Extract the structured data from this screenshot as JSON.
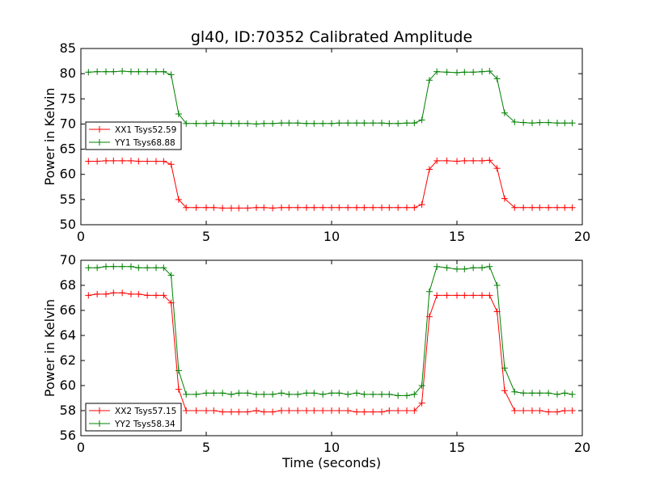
{
  "title": "gl40, ID:70352 Calibrated Amplitude",
  "chart_data": [
    {
      "type": "line",
      "ylabel": "Power in Kelvin",
      "xlabel": "",
      "xlim": [
        0,
        20
      ],
      "ylim": [
        50,
        85
      ],
      "xticks": [
        "0",
        "5",
        "10",
        "15",
        "20"
      ],
      "yticks": [
        "50",
        "55",
        "60",
        "65",
        "70",
        "75",
        "80",
        "85"
      ],
      "grid": false,
      "legend_position": "left",
      "x": [
        0.3,
        0.65,
        1.0,
        1.3,
        1.65,
        2.0,
        2.3,
        2.65,
        3.0,
        3.3,
        3.6,
        3.9,
        4.2,
        4.6,
        5.0,
        5.3,
        5.65,
        6.0,
        6.3,
        6.65,
        7.0,
        7.3,
        7.65,
        8.0,
        8.3,
        8.65,
        9.0,
        9.3,
        9.65,
        10.0,
        10.3,
        10.65,
        11.0,
        11.3,
        11.65,
        12.0,
        12.3,
        12.65,
        13.0,
        13.3,
        13.6,
        13.9,
        14.2,
        14.6,
        15.0,
        15.3,
        15.65,
        16.0,
        16.3,
        16.6,
        16.9,
        17.3,
        17.65,
        18.0,
        18.3,
        18.65,
        19.0,
        19.3,
        19.6
      ],
      "series": [
        {
          "name": "XX1 Tsys52.59",
          "color": "#ff0000",
          "values": [
            62.6,
            62.6,
            62.7,
            62.7,
            62.7,
            62.7,
            62.6,
            62.6,
            62.6,
            62.6,
            62.0,
            55.0,
            53.4,
            53.4,
            53.4,
            53.4,
            53.3,
            53.3,
            53.3,
            53.3,
            53.4,
            53.4,
            53.3,
            53.4,
            53.4,
            53.4,
            53.4,
            53.4,
            53.4,
            53.4,
            53.4,
            53.4,
            53.4,
            53.4,
            53.4,
            53.4,
            53.4,
            53.4,
            53.4,
            53.4,
            54.0,
            61.0,
            62.7,
            62.7,
            62.6,
            62.7,
            62.7,
            62.7,
            62.8,
            61.2,
            55.2,
            53.4,
            53.4,
            53.4,
            53.4,
            53.4,
            53.4,
            53.4,
            53.4
          ]
        },
        {
          "name": "YY1 Tsys68.88",
          "color": "#008000",
          "values": [
            80.3,
            80.4,
            80.4,
            80.4,
            80.5,
            80.4,
            80.4,
            80.4,
            80.4,
            80.4,
            79.8,
            72.0,
            70.1,
            70.1,
            70.1,
            70.2,
            70.1,
            70.1,
            70.1,
            70.1,
            70.0,
            70.1,
            70.1,
            70.2,
            70.2,
            70.2,
            70.1,
            70.1,
            70.1,
            70.1,
            70.2,
            70.2,
            70.2,
            70.2,
            70.2,
            70.2,
            70.1,
            70.1,
            70.2,
            70.2,
            70.8,
            78.7,
            80.4,
            80.3,
            80.2,
            80.3,
            80.3,
            80.4,
            80.5,
            79.0,
            72.2,
            70.4,
            70.3,
            70.2,
            70.3,
            70.3,
            70.2,
            70.2,
            70.2
          ]
        }
      ]
    },
    {
      "type": "line",
      "ylabel": "Power in Kelvin",
      "xlabel": "Time (seconds)",
      "xlim": [
        0,
        20
      ],
      "ylim": [
        56,
        70
      ],
      "xticks": [
        "0",
        "5",
        "10",
        "15",
        "20"
      ],
      "yticks": [
        "56",
        "58",
        "60",
        "62",
        "64",
        "66",
        "68",
        "70"
      ],
      "grid": false,
      "legend_position": "lower-left",
      "x": [
        0.3,
        0.65,
        1.0,
        1.3,
        1.65,
        2.0,
        2.3,
        2.65,
        3.0,
        3.3,
        3.6,
        3.9,
        4.2,
        4.6,
        5.0,
        5.3,
        5.65,
        6.0,
        6.3,
        6.65,
        7.0,
        7.3,
        7.65,
        8.0,
        8.3,
        8.65,
        9.0,
        9.3,
        9.65,
        10.0,
        10.3,
        10.65,
        11.0,
        11.3,
        11.65,
        12.0,
        12.3,
        12.65,
        13.0,
        13.3,
        13.6,
        13.9,
        14.2,
        14.6,
        15.0,
        15.3,
        15.65,
        16.0,
        16.3,
        16.6,
        16.9,
        17.3,
        17.65,
        18.0,
        18.3,
        18.65,
        19.0,
        19.3,
        19.6
      ],
      "series": [
        {
          "name": "XX2 Tsys57.15",
          "color": "#ff0000",
          "values": [
            67.2,
            67.3,
            67.3,
            67.4,
            67.4,
            67.3,
            67.3,
            67.2,
            67.2,
            67.2,
            66.6,
            59.7,
            58.0,
            58.0,
            58.0,
            58.0,
            57.9,
            57.9,
            57.9,
            57.9,
            58.0,
            57.9,
            57.9,
            58.0,
            58.0,
            58.0,
            58.0,
            58.0,
            58.0,
            58.0,
            58.0,
            58.0,
            57.9,
            57.9,
            57.9,
            57.9,
            58.0,
            58.0,
            58.0,
            58.0,
            58.6,
            65.5,
            67.2,
            67.2,
            67.2,
            67.2,
            67.2,
            67.2,
            67.2,
            65.9,
            59.6,
            58.0,
            58.0,
            58.0,
            58.0,
            57.9,
            57.9,
            58.0,
            58.0
          ]
        },
        {
          "name": "YY2 Tsys58.34",
          "color": "#008000",
          "values": [
            69.4,
            69.4,
            69.5,
            69.5,
            69.5,
            69.5,
            69.4,
            69.4,
            69.4,
            69.4,
            68.8,
            61.2,
            59.3,
            59.3,
            59.4,
            59.4,
            59.4,
            59.3,
            59.4,
            59.4,
            59.3,
            59.3,
            59.3,
            59.4,
            59.3,
            59.3,
            59.4,
            59.4,
            59.3,
            59.4,
            59.4,
            59.3,
            59.4,
            59.3,
            59.3,
            59.3,
            59.3,
            59.2,
            59.2,
            59.3,
            60.0,
            67.5,
            69.5,
            69.4,
            69.3,
            69.3,
            69.4,
            69.4,
            69.5,
            68.0,
            61.4,
            59.5,
            59.4,
            59.4,
            59.4,
            59.4,
            59.3,
            59.4,
            59.3
          ]
        }
      ]
    }
  ]
}
